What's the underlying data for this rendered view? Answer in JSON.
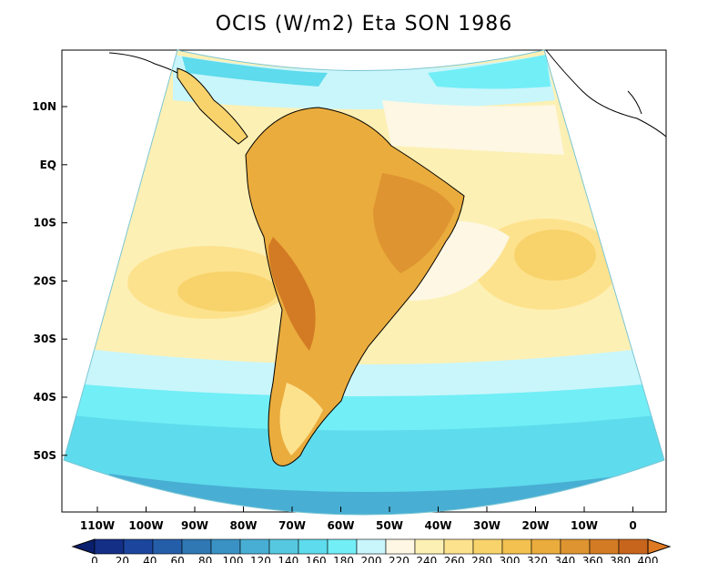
{
  "title": "OCIS (W/m2) Eta SON 1986",
  "lat_labels": [
    "10N",
    "EQ",
    "10S",
    "20S",
    "30S",
    "40S",
    "50S"
  ],
  "lon_labels": [
    "110W",
    "100W",
    "90W",
    "80W",
    "70W",
    "60W",
    "50W",
    "40W",
    "30W",
    "20W",
    "10W",
    "0"
  ],
  "colorbar": {
    "labels": [
      "0",
      "20",
      "40",
      "60",
      "80",
      "100",
      "120",
      "140",
      "160",
      "180",
      "200",
      "220",
      "240",
      "260",
      "280",
      "300",
      "320",
      "340",
      "360",
      "380",
      "400"
    ],
    "colors": [
      "#0a1f6e",
      "#132f86",
      "#1c469e",
      "#255ea8",
      "#2f78b4",
      "#3a92c4",
      "#48aed4",
      "#56c8e0",
      "#5edbec",
      "#72eef6",
      "#c9f6fb",
      "#fdf7e4",
      "#fdf0b4",
      "#fde28e",
      "#f8d36b",
      "#f2c14f",
      "#eaac3d",
      "#de9430",
      "#d37b24",
      "#c8651c",
      "#e07a22"
    ]
  },
  "colors": {
    "ocean_cool": "#5edbec",
    "ocean_mild": "#c9f6fb",
    "ocean_warm": "#fde28e",
    "land_warm": "#eaac3d",
    "land_hot": "#d37b24"
  }
}
